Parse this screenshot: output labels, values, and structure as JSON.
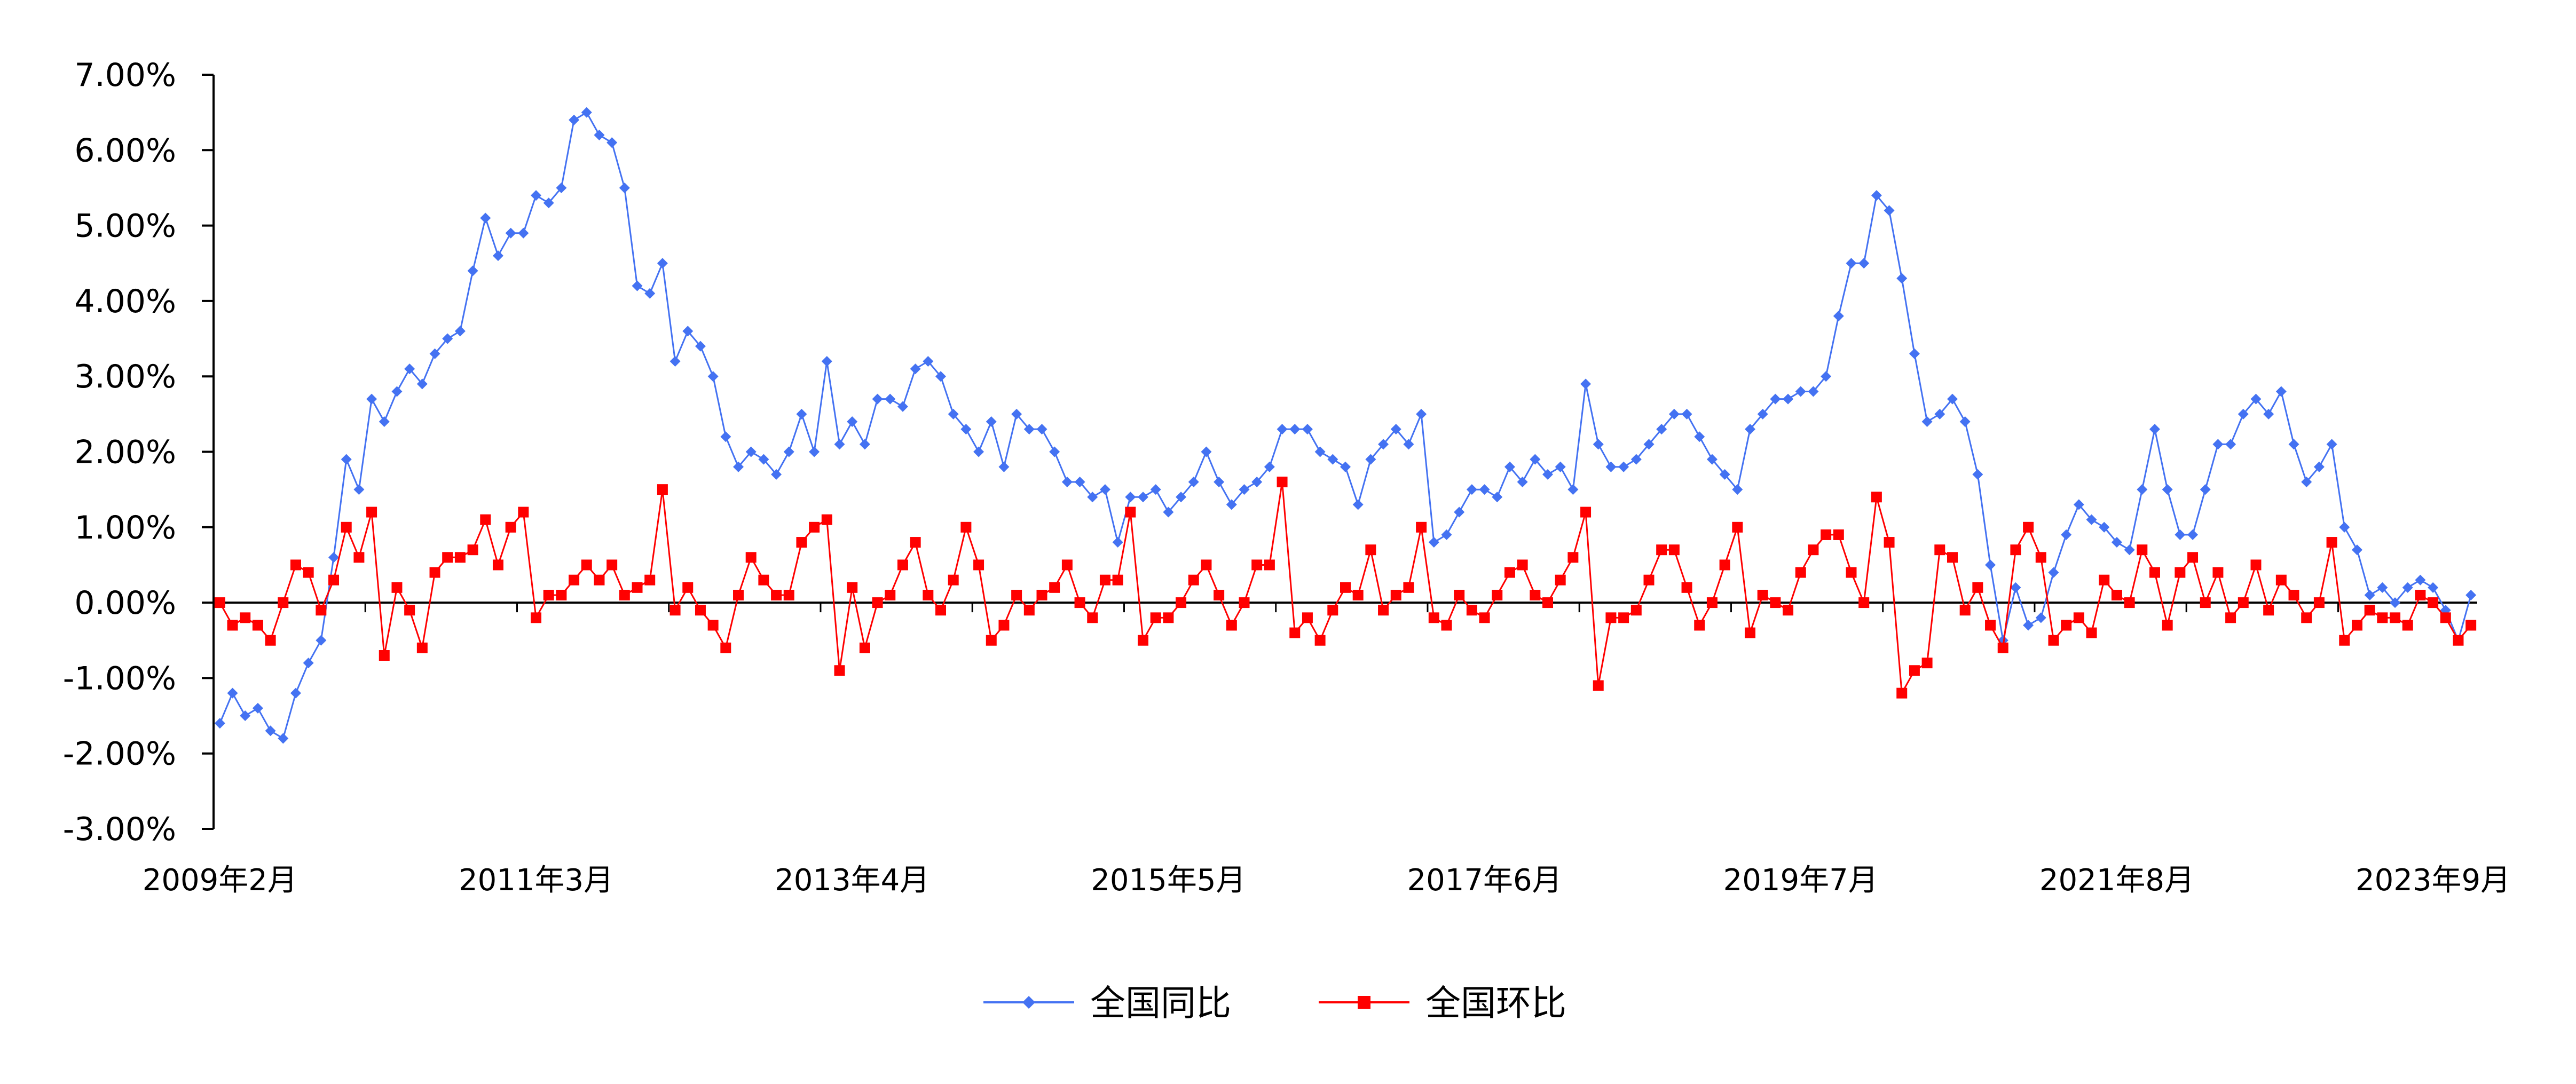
{
  "chart_data": {
    "type": "line",
    "title": "",
    "xlabel": "",
    "ylabel": "",
    "ylim": [
      -0.03,
      0.07
    ],
    "y_ticks": [
      "7.00%",
      "6.00%",
      "5.00%",
      "4.00%",
      "3.00%",
      "2.00%",
      "1.00%",
      "0.00%",
      "-1.00%",
      "-2.00%",
      "-3.00%"
    ],
    "x_start": "2009-02",
    "x_end": "2023-11",
    "x_tick_labels": [
      "2009年2月",
      "2011年3月",
      "2013年4月",
      "2015年5月",
      "2017年6月",
      "2019年7月",
      "2021年8月",
      "2023年9月"
    ],
    "legend_position": "bottom",
    "grid": false,
    "series": [
      {
        "name": "全国同比",
        "color": "#4472F2",
        "marker": "diamond",
        "values": [
          -1.6,
          -1.2,
          -1.5,
          -1.4,
          -1.7,
          -1.8,
          -1.2,
          -0.8,
          -0.5,
          0.6,
          1.9,
          1.5,
          2.7,
          2.4,
          2.8,
          3.1,
          2.9,
          3.3,
          3.5,
          3.6,
          4.4,
          5.1,
          4.6,
          4.9,
          4.9,
          5.4,
          5.3,
          5.5,
          6.4,
          6.5,
          6.2,
          6.1,
          5.5,
          4.2,
          4.1,
          4.5,
          3.2,
          3.6,
          3.4,
          3.0,
          2.2,
          1.8,
          2.0,
          1.9,
          1.7,
          2.0,
          2.5,
          2.0,
          3.2,
          2.1,
          2.4,
          2.1,
          2.7,
          2.7,
          2.6,
          3.1,
          3.2,
          3.0,
          2.5,
          2.3,
          2.0,
          2.4,
          1.8,
          2.5,
          2.3,
          2.3,
          2.0,
          1.6,
          1.6,
          1.4,
          1.5,
          0.8,
          1.4,
          1.4,
          1.5,
          1.2,
          1.4,
          1.6,
          2.0,
          1.6,
          1.3,
          1.5,
          1.6,
          1.8,
          2.3,
          2.3,
          2.3,
          2.0,
          1.9,
          1.8,
          1.3,
          1.9,
          2.1,
          2.3,
          2.1,
          2.5,
          0.8,
          0.9,
          1.2,
          1.5,
          1.5,
          1.4,
          1.8,
          1.6,
          1.9,
          1.7,
          1.8,
          1.5,
          2.9,
          2.1,
          1.8,
          1.8,
          1.9,
          2.1,
          2.3,
          2.5,
          2.5,
          2.2,
          1.9,
          1.7,
          1.5,
          2.3,
          2.5,
          2.7,
          2.7,
          2.8,
          2.8,
          3.0,
          3.8,
          4.5,
          4.5,
          5.4,
          5.2,
          4.3,
          3.3,
          2.4,
          2.5,
          2.7,
          2.4,
          1.7,
          0.5,
          -0.5,
          0.2,
          -0.3,
          -0.2,
          0.4,
          0.9,
          1.3,
          1.1,
          1.0,
          0.8,
          0.7,
          1.5,
          2.3,
          1.5,
          0.9,
          0.9,
          1.5,
          2.1,
          2.1,
          2.5,
          2.7,
          2.5,
          2.8,
          2.1,
          1.6,
          1.8,
          2.1,
          1.0,
          0.7,
          0.1,
          0.2,
          0.0,
          0.2,
          0.3,
          0.2,
          -0.1,
          -0.5,
          0.1
        ]
      },
      {
        "name": "全国环比",
        "color": "#FF0000",
        "marker": "square",
        "values": [
          0.0,
          -0.3,
          -0.2,
          -0.3,
          -0.5,
          0.0,
          0.5,
          0.4,
          -0.1,
          0.3,
          1.0,
          0.6,
          1.2,
          -0.7,
          0.2,
          -0.1,
          -0.6,
          0.4,
          0.6,
          0.6,
          0.7,
          1.1,
          0.5,
          1.0,
          1.2,
          -0.2,
          0.1,
          0.1,
          0.3,
          0.5,
          0.3,
          0.5,
          0.1,
          0.2,
          0.3,
          1.5,
          -0.1,
          0.2,
          -0.1,
          -0.3,
          -0.6,
          0.1,
          0.6,
          0.3,
          0.1,
          0.1,
          0.8,
          1.0,
          1.1,
          -0.9,
          0.2,
          -0.6,
          0.0,
          0.1,
          0.5,
          0.8,
          0.1,
          -0.1,
          0.3,
          1.0,
          0.5,
          -0.5,
          -0.3,
          0.1,
          -0.1,
          0.1,
          0.2,
          0.5,
          0.0,
          -0.2,
          0.3,
          0.3,
          1.2,
          -0.5,
          -0.2,
          -0.2,
          0.0,
          0.3,
          0.5,
          0.1,
          -0.3,
          0.0,
          0.5,
          0.5,
          1.6,
          -0.4,
          -0.2,
          -0.5,
          -0.1,
          0.2,
          0.1,
          0.7,
          -0.1,
          0.1,
          0.2,
          1.0,
          -0.2,
          -0.3,
          0.1,
          -0.1,
          -0.2,
          0.1,
          0.4,
          0.5,
          0.1,
          0.0,
          0.3,
          0.6,
          1.2,
          -1.1,
          -0.2,
          -0.2,
          -0.1,
          0.3,
          0.7,
          0.7,
          0.2,
          -0.3,
          0.0,
          0.5,
          1.0,
          -0.4,
          0.1,
          0.0,
          -0.1,
          0.4,
          0.7,
          0.9,
          0.9,
          0.4,
          0.0,
          1.4,
          0.8,
          -1.2,
          -0.9,
          -0.8,
          0.7,
          0.6,
          -0.1,
          0.2,
          -0.3,
          -0.6,
          0.7,
          1.0,
          0.6,
          -0.5,
          -0.3,
          -0.2,
          -0.4,
          0.3,
          0.1,
          0.0,
          0.7,
          0.4,
          -0.3,
          0.4,
          0.6,
          0.0,
          0.4,
          -0.2,
          0.0,
          0.5,
          -0.1,
          0.3,
          0.1,
          -0.2,
          0.0,
          0.8,
          -0.5,
          -0.3,
          -0.1,
          -0.2,
          -0.2,
          -0.3,
          0.1,
          0.0,
          -0.2,
          -0.5,
          -0.3
        ]
      }
    ]
  }
}
